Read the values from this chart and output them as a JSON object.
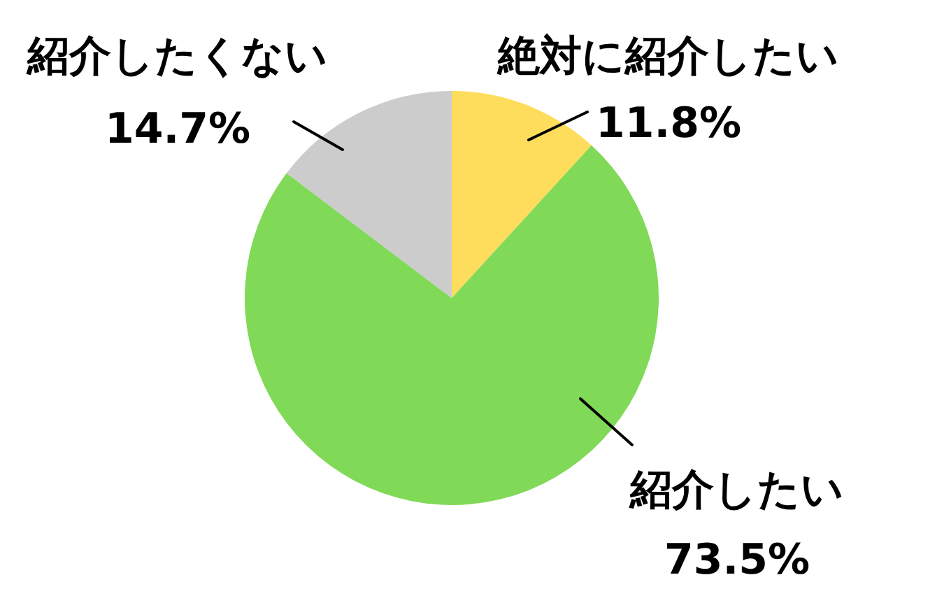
{
  "chart_data": {
    "type": "pie",
    "categories": [
      "絶対に紹介したい",
      "紹介したい",
      "紹介したくない"
    ],
    "values": [
      11.8,
      73.5,
      14.7
    ],
    "colors": [
      "#ffdd5c",
      "#80d957",
      "#cccccc"
    ],
    "value_labels": [
      "11.8%",
      "73.5%",
      "14.7%"
    ],
    "legend": false
  }
}
